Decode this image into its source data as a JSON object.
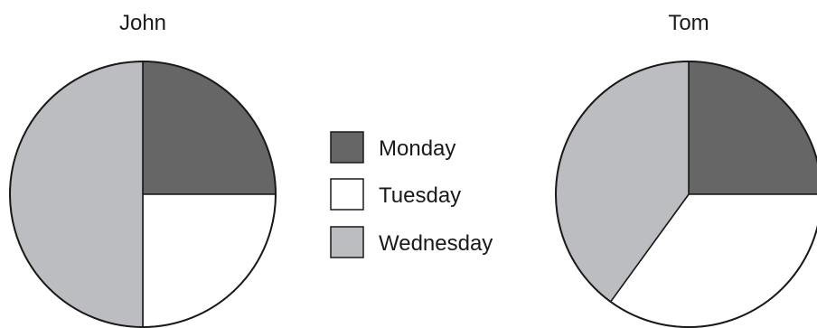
{
  "chart_data": {
    "type": "pie",
    "legend": {
      "placement": "center",
      "entries": [
        {
          "label": "Monday",
          "color": "#666666"
        },
        {
          "label": "Tuesday",
          "color": "#ffffff"
        },
        {
          "label": "Wednesday",
          "color": "#bcbdc0"
        }
      ]
    },
    "charts": [
      {
        "title": "John",
        "slices": [
          {
            "label": "Monday",
            "value": 25
          },
          {
            "label": "Tuesday",
            "value": 25
          },
          {
            "label": "Wednesday",
            "value": 50
          }
        ]
      },
      {
        "title": "Tom",
        "slices": [
          {
            "label": "Monday",
            "value": 25
          },
          {
            "label": "Tuesday",
            "value": 35
          },
          {
            "label": "Wednesday",
            "value": 40
          }
        ]
      }
    ]
  }
}
